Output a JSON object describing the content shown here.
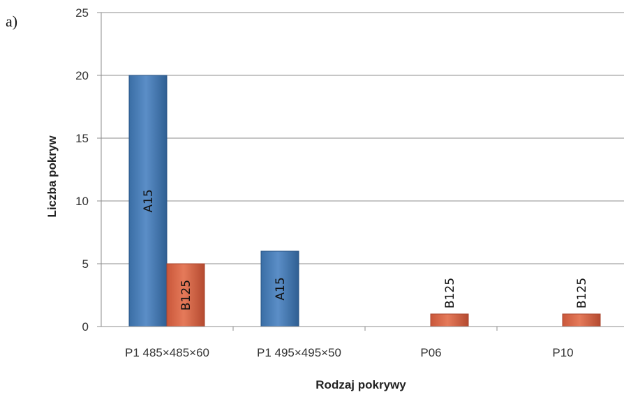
{
  "panel_label": "a)",
  "chart_data": {
    "type": "bar",
    "categories": [
      "P1 485×485×60",
      "P1 495×495×50",
      "P06",
      "P10"
    ],
    "series": [
      {
        "values": [
          20,
          6,
          0,
          0
        ],
        "labels": [
          "A15",
          "A15",
          "",
          ""
        ],
        "color": "#4f81bd"
      },
      {
        "values": [
          5,
          0,
          1,
          1
        ],
        "labels": [
          "B125",
          "",
          "B125",
          "B125"
        ],
        "color": "#c0504d"
      }
    ],
    "xlabel": "Rodzaj pokrywy",
    "ylabel": "Liczba pokryw",
    "ylim": [
      0,
      25
    ],
    "yticks": [
      0,
      5,
      10,
      15,
      20,
      25
    ],
    "grid": true
  }
}
